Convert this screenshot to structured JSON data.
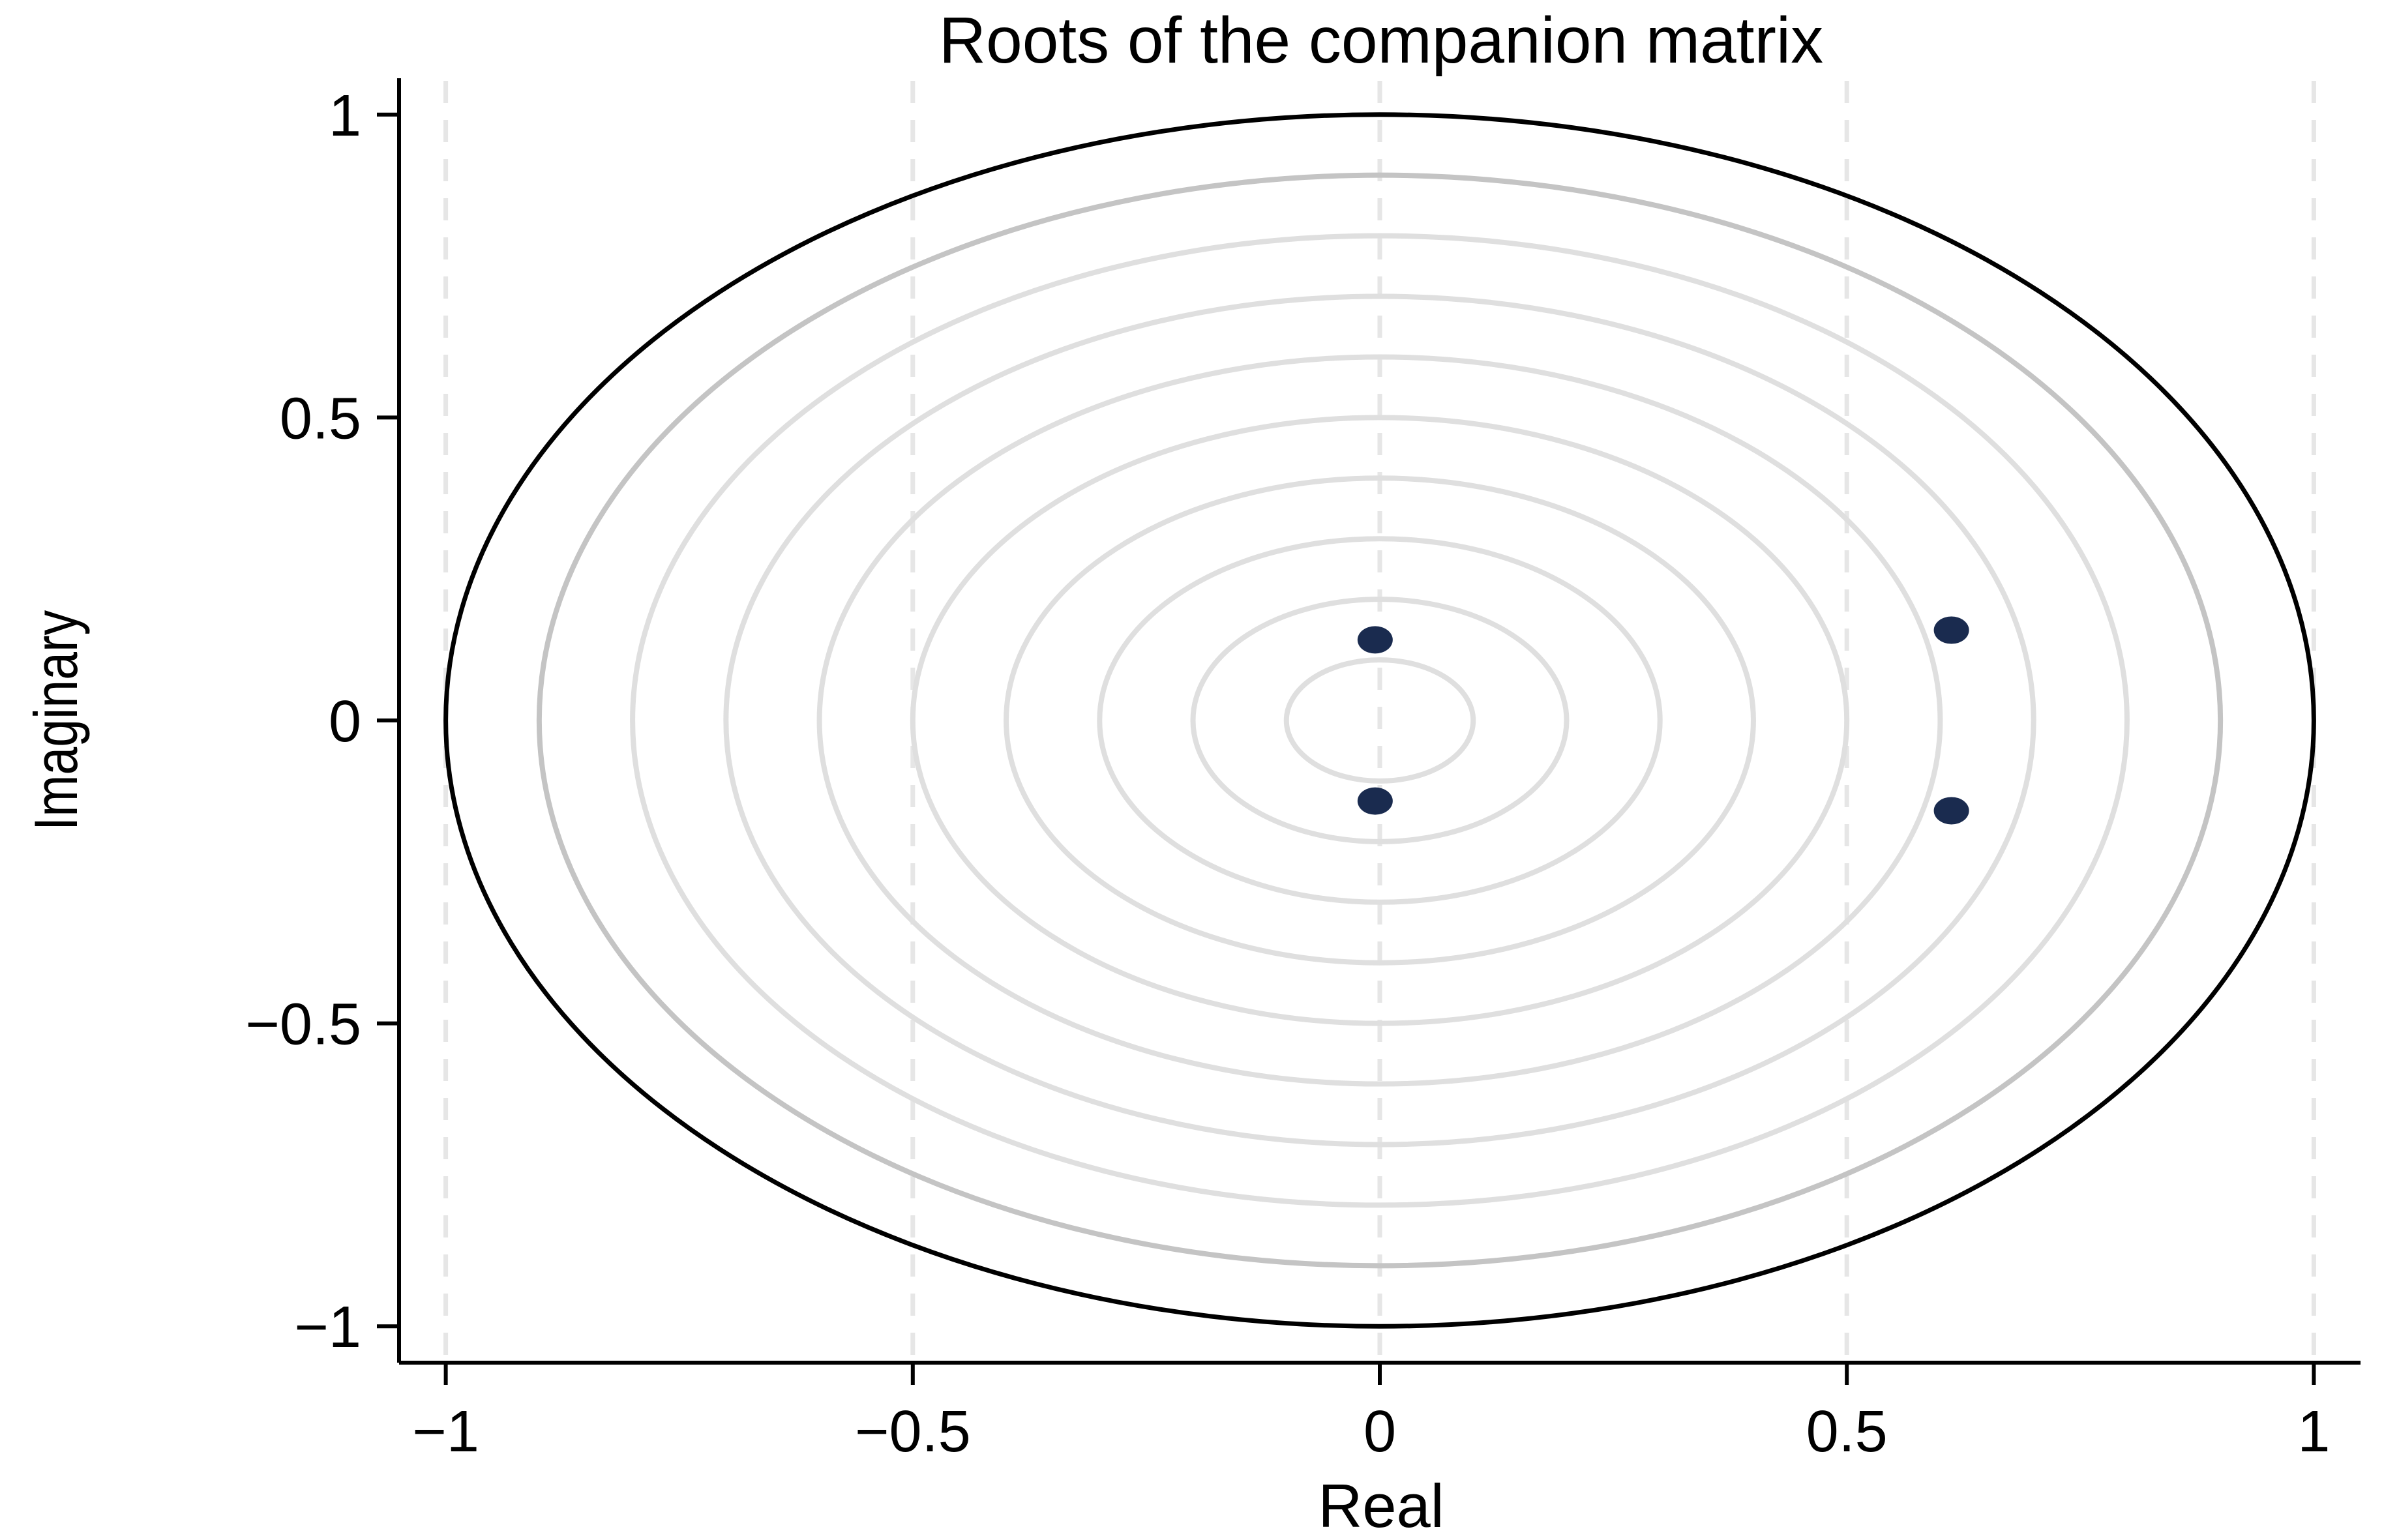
{
  "chart_data": {
    "type": "scatter",
    "title": "Roots of the companion matrix",
    "xlabel": "Real",
    "ylabel": "Imaginary",
    "xlim": [
      -1.05,
      1.05
    ],
    "ylim": [
      -1.06,
      1.06
    ],
    "x_ticks": [
      -1,
      -0.5,
      0,
      0.5,
      1
    ],
    "x_tick_labels": [
      "−1",
      "−0.5",
      "0",
      "0.5",
      "1"
    ],
    "y_ticks": [
      -1,
      -0.5,
      0,
      0.5,
      1
    ],
    "y_tick_labels": [
      "−1",
      "−0.5",
      "0",
      "0.5",
      "1"
    ],
    "vertical_dashed_gridlines_at": [
      -1,
      -0.5,
      0,
      0.5,
      1
    ],
    "reference_circle_radii": [
      0.1,
      0.2,
      0.3,
      0.4,
      0.5,
      0.6,
      0.7,
      0.8,
      0.9,
      1.0
    ],
    "points": [
      {
        "x": -0.005,
        "y": 0.133
      },
      {
        "x": -0.005,
        "y": -0.133
      },
      {
        "x": 0.612,
        "y": 0.149
      },
      {
        "x": 0.612,
        "y": -0.149
      }
    ],
    "grid": "vertical dashed lines at x ticks",
    "legend": "none",
    "colors": {
      "points": "#1a2b4f",
      "unit_circle": "#000000",
      "circle_0_9": "#c4c4c4",
      "inner_circles": "#dfdfdf",
      "dashed_grid": "#e6e6e6",
      "axes": "#000000"
    }
  }
}
